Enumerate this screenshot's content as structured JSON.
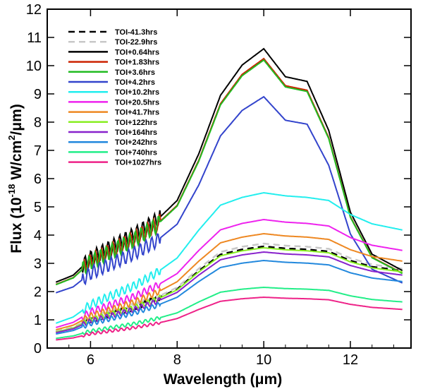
{
  "chart_data": {
    "type": "line",
    "xlabel": "Wavelength (μm)",
    "ylabel": "Flux (10-18 W/cm2/μm)",
    "ylabel_parts": {
      "prefix": "Flux (10",
      "exp1": "-18",
      "mid": " W/cm",
      "exp2": "2",
      "suffix": "/μm)"
    },
    "xlim": [
      5.0,
      13.4
    ],
    "ylim": [
      0,
      12
    ],
    "xticks": [
      6,
      8,
      10,
      12
    ],
    "yticks": [
      0,
      1,
      2,
      3,
      4,
      5,
      6,
      7,
      8,
      9,
      10,
      11,
      12
    ],
    "legend_position": "top-left",
    "series": [
      {
        "name": "TOI-41.3hrs",
        "color": "#000000",
        "dash": "dashed",
        "peak": 3.6
      },
      {
        "name": "TOI-22.9hrs",
        "color": "#c8c8c8",
        "dash": "dashed",
        "peak": 3.7
      },
      {
        "name": "TOI+0.64hrs",
        "color": "#000000",
        "dash": "solid",
        "peak": 10.6
      },
      {
        "name": "TOI+1.83hrs",
        "color": "#cc2200",
        "dash": "solid",
        "peak": 10.25
      },
      {
        "name": "TOI+3.6hrs",
        "color": "#22bb22",
        "dash": "solid",
        "peak": 10.2
      },
      {
        "name": "TOI+4.2hrs",
        "color": "#3344cc",
        "dash": "solid",
        "peak": 8.9
      },
      {
        "name": "TOI+10.2hrs",
        "color": "#22eeee",
        "dash": "solid",
        "peak": 5.5
      },
      {
        "name": "TOI+20.5hrs",
        "color": "#ee22ee",
        "dash": "solid",
        "peak": 4.55
      },
      {
        "name": "TOI+41.7hrs",
        "color": "#ee8822",
        "dash": "solid",
        "peak": 4.05
      },
      {
        "name": "TOI+122hrs",
        "color": "#88ee22",
        "dash": "solid",
        "peak": 3.55
      },
      {
        "name": "TOI+164hrs",
        "color": "#8822cc",
        "dash": "solid",
        "peak": 3.4
      },
      {
        "name": "TOI+242hrs",
        "color": "#2288dd",
        "dash": "solid",
        "peak": 3.1
      },
      {
        "name": "TOI+740hrs",
        "color": "#22ee88",
        "dash": "solid",
        "peak": 2.15
      },
      {
        "name": "TOI+1027hrs",
        "color": "#ee2288",
        "dash": "solid",
        "peak": 1.8
      }
    ],
    "profile": {
      "x": [
        5.2,
        5.6,
        6.0,
        6.5,
        7.0,
        7.5,
        8.0,
        8.5,
        9.0,
        9.5,
        10.0,
        10.5,
        11.0,
        11.5,
        12.0,
        12.5,
        13.2
      ],
      "hump": [
        0.0,
        0.03,
        0.1,
        0.15,
        0.2,
        0.26,
        0.35,
        0.55,
        0.8,
        0.93,
        1.0,
        0.88,
        0.86,
        0.65,
        0.3,
        0.12,
        0.05
      ],
      "base": [
        0.16,
        0.2,
        0.28,
        0.34,
        0.4,
        0.48,
        0.58,
        0.76,
        0.92,
        0.97,
        1.0,
        0.98,
        0.97,
        0.95,
        0.86,
        0.8,
        0.76
      ]
    }
  }
}
